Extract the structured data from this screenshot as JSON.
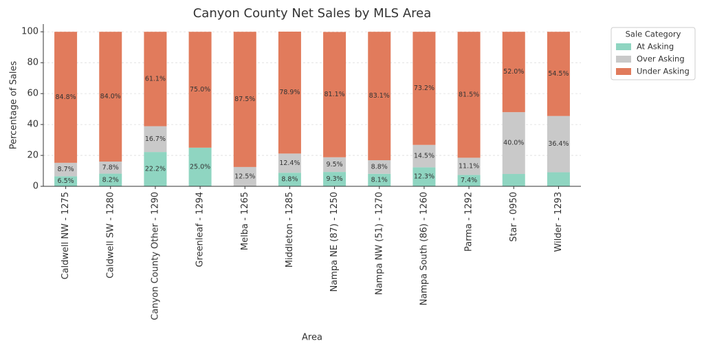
{
  "chart_data": {
    "type": "stacked_bar",
    "title": "Canyon County Net Sales by MLS Area",
    "x_label": "Area",
    "y_label": "Percentage of Sales",
    "legend_title": "Sale Category",
    "legend_position": "upper right outside",
    "grid": true,
    "categories": [
      "Caldwell NW - 1275",
      "Caldwell SW - 1280",
      "Canyon County Other - 1290",
      "Greenleaf - 1294",
      "Melba - 1265",
      "Middleton - 1285",
      "Nampa NE (87) - 1250",
      "Nampa NW (51) - 1270",
      "Nampa South (86) - 1260",
      "Parma - 1292",
      "Star - 0950",
      "Wilder - 1293"
    ],
    "series": [
      {
        "name": "At Asking",
        "color": "#8fd5c1",
        "values": [
          6.5,
          8.2,
          22.2,
          25.0,
          0,
          8.8,
          9.3,
          8.1,
          12.3,
          7.4,
          8.0,
          9.1
        ],
        "value_labels": [
          "6.5%",
          "8.2%",
          "22.2%",
          "25.0%",
          null,
          "8.8%",
          "9.3%",
          "8.1%",
          "12.3%",
          "7.4%",
          null,
          null
        ]
      },
      {
        "name": "Over Asking",
        "color": "#c9c9c9",
        "values": [
          8.7,
          7.8,
          16.7,
          0,
          12.5,
          12.4,
          9.5,
          8.8,
          14.5,
          11.1,
          40.0,
          36.4
        ],
        "value_labels": [
          "8.7%",
          "7.8%",
          "16.7%",
          null,
          "12.5%",
          "12.4%",
          "9.5%",
          "8.8%",
          "14.5%",
          "11.1%",
          "40.0%",
          "36.4%"
        ]
      },
      {
        "name": "Under Asking",
        "color": "#e17b5c",
        "values": [
          84.8,
          84.0,
          61.1,
          75.0,
          87.5,
          78.9,
          81.1,
          83.1,
          73.2,
          81.5,
          52.0,
          54.5
        ],
        "value_labels": [
          "84.8%",
          "84.0%",
          "61.1%",
          "75.0%",
          "87.5%",
          "78.9%",
          "81.1%",
          "83.1%",
          "73.2%",
          "81.5%",
          "52.0%",
          "54.5%"
        ]
      }
    ],
    "ylim": [
      0,
      105
    ],
    "yticks": [
      0,
      20,
      40,
      60,
      80,
      100
    ]
  }
}
